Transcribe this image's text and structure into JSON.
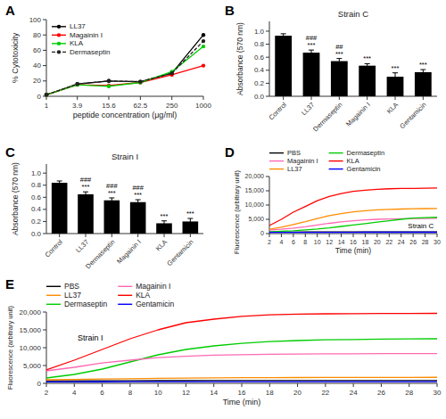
{
  "chart_data": [
    {
      "type": "line",
      "panel": "A",
      "xlabel": "peptide concentration (μg/ml)",
      "ylabel": "% Cytotoxicity",
      "log": "x",
      "x": [
        1,
        3.9,
        15.6,
        62.5,
        250,
        1000
      ],
      "xlim": [
        1,
        1000
      ],
      "xticks": [
        1,
        3.9,
        15.6,
        62.5,
        250,
        1000
      ],
      "ylim": [
        0,
        100
      ],
      "yticks": [
        0,
        20,
        40,
        60,
        80,
        100
      ],
      "legend": "upper left",
      "grid": false,
      "series": [
        {
          "name": "LL37",
          "color": "#000000",
          "marker": "circle",
          "line_style": "solid",
          "values": [
            2,
            16,
            20,
            19,
            30,
            80
          ]
        },
        {
          "name": "Magainin I",
          "color": "#ff0000",
          "marker": "circle",
          "line_style": "solid",
          "values": [
            2,
            15,
            14,
            18,
            28,
            40
          ]
        },
        {
          "name": "KLA",
          "color": "#00cc00",
          "marker": "circle",
          "line_style": "solid",
          "values": [
            2,
            15,
            13,
            18,
            32,
            65
          ]
        },
        {
          "name": "Dermaseptin",
          "color": "#222222",
          "marker": "circle",
          "line_style": "dashed",
          "values": [
            2,
            16,
            20,
            19,
            30,
            72
          ]
        }
      ]
    },
    {
      "type": "bar",
      "panel": "B",
      "title": "Strain C",
      "ylabel": "Absorbance (570 nm)",
      "categories": [
        "Control",
        "LL37",
        "Dermaseptin",
        "Magainin I",
        "KLA",
        "Gentamicin"
      ],
      "values": [
        0.93,
        0.67,
        0.54,
        0.47,
        0.3,
        0.37
      ],
      "errors": [
        0.03,
        0.04,
        0.04,
        0.03,
        0.06,
        0.04
      ],
      "color": "#000000",
      "ylim": [
        0.0,
        1.15
      ],
      "yticks": [
        {
          "value": 0,
          "label": "0.0"
        },
        0.2,
        0.4,
        0.6,
        0.8,
        {
          "value": 1,
          "label": "1.0"
        }
      ],
      "grid": false,
      "annotations": [
        {
          "category": "LL37",
          "text": "###"
        },
        {
          "category": "LL37",
          "text": "***"
        },
        {
          "category": "Dermaseptin",
          "text": "##"
        },
        {
          "category": "Dermaseptin",
          "text": "***"
        },
        {
          "category": "Magainin I",
          "text": "***"
        },
        {
          "category": "KLA",
          "text": "***"
        },
        {
          "category": "Gentamicin",
          "text": "***"
        }
      ]
    },
    {
      "type": "bar",
      "panel": "C",
      "title": "Strain I",
      "ylabel": "Absorbance (570 nm)",
      "categories": [
        "Control",
        "LL37",
        "Dermaseptin",
        "Magainin I",
        "KLA",
        "Gentamicin"
      ],
      "values": [
        0.84,
        0.65,
        0.55,
        0.52,
        0.17,
        0.2
      ],
      "errors": [
        0.03,
        0.04,
        0.04,
        0.04,
        0.04,
        0.05
      ],
      "color": "#000000",
      "ylim": [
        0.0,
        1.15
      ],
      "yticks": [
        {
          "value": 0,
          "label": "0.0"
        },
        0.2,
        0.4,
        0.6,
        0.8,
        {
          "value": 1,
          "label": "1.0"
        }
      ],
      "grid": false,
      "annotations": [
        {
          "category": "LL37",
          "text": "###"
        },
        {
          "category": "LL37",
          "text": "***"
        },
        {
          "category": "Dermaseptin",
          "text": "###"
        },
        {
          "category": "Dermaseptin",
          "text": "***"
        },
        {
          "category": "Magainin I",
          "text": "###"
        },
        {
          "category": "Magainin I",
          "text": "***"
        },
        {
          "category": "KLA",
          "text": "***"
        },
        {
          "category": "Gentamicin",
          "text": "***"
        }
      ]
    },
    {
      "type": "line",
      "panel": "D",
      "xlabel": "Time (min)",
      "ylabel": "Fluorescence (arbitrary unit)",
      "x": [
        2,
        4,
        6,
        8,
        10,
        12,
        14,
        16,
        18,
        20,
        22,
        24,
        26,
        28,
        30
      ],
      "xlim": [
        2,
        30
      ],
      "xticks": [
        2,
        4,
        6,
        8,
        10,
        12,
        14,
        16,
        18,
        20,
        22,
        24,
        26,
        28,
        30
      ],
      "ylim": [
        0,
        20000
      ],
      "yticks": [
        0,
        {
          "value": 5000,
          "label": "5,000"
        },
        {
          "value": 10000,
          "label": "10,000"
        },
        {
          "value": 15000,
          "label": "15,000"
        },
        {
          "value": 20000,
          "label": "20,000"
        }
      ],
      "legend": "upper left",
      "grid": false,
      "annotations": [
        {
          "text": "Strain C"
        }
      ],
      "series": [
        {
          "name": "PBS",
          "color": "#000000",
          "values": [
            500,
            520,
            530,
            540,
            550,
            560,
            570,
            575,
            580,
            582,
            585,
            587,
            590,
            592,
            595
          ]
        },
        {
          "name": "Magainin I",
          "color": "#ff69b4",
          "values": [
            1200,
            1500,
            1900,
            2400,
            3000,
            3600,
            4100,
            4500,
            4800,
            5000,
            5100,
            5200,
            5250,
            5300,
            5350
          ]
        },
        {
          "name": "LL37",
          "color": "#ff8c00",
          "values": [
            1500,
            2200,
            3200,
            4200,
            5300,
            6300,
            7000,
            7600,
            8000,
            8300,
            8500,
            8600,
            8700,
            8750,
            8800
          ]
        },
        {
          "name": "Dermaseptin",
          "color": "#00cc00",
          "values": [
            600,
            800,
            1000,
            1300,
            1600,
            2000,
            2500,
            3000,
            3500,
            4000,
            4500,
            5000,
            5400,
            5600,
            5700
          ]
        },
        {
          "name": "KLA",
          "color": "#ff0000",
          "values": [
            2800,
            5000,
            7500,
            9500,
            11500,
            13000,
            14000,
            14800,
            15200,
            15500,
            15700,
            15800,
            15850,
            15900,
            15950
          ]
        },
        {
          "name": "Gentamicin",
          "color": "#0000ff",
          "values": [
            400,
            420,
            430,
            440,
            445,
            450,
            455,
            460,
            462,
            464,
            466,
            468,
            470,
            472,
            474
          ]
        }
      ]
    },
    {
      "type": "line",
      "panel": "E",
      "xlabel": "Time (min)",
      "ylabel": "Fluorescence (arbitrary unit)",
      "x": [
        2,
        4,
        6,
        8,
        10,
        12,
        14,
        16,
        18,
        20,
        22,
        24,
        26,
        28,
        30
      ],
      "xlim": [
        2,
        30
      ],
      "xticks": [
        2,
        4,
        6,
        8,
        10,
        12,
        14,
        16,
        18,
        20,
        22,
        24,
        26,
        28,
        30
      ],
      "ylim": [
        0,
        20000
      ],
      "yticks": [
        0,
        {
          "value": 5000,
          "label": "5,000"
        },
        {
          "value": 10000,
          "label": "10,000"
        },
        {
          "value": 15000,
          "label": "15,000"
        },
        {
          "value": 20000,
          "label": "20,000"
        }
      ],
      "legend": "upper left",
      "grid": false,
      "annotations": [
        {
          "text": "Strain I"
        }
      ],
      "series": [
        {
          "name": "PBS",
          "color": "#000000",
          "values": [
            700,
            720,
            730,
            740,
            748,
            755,
            762,
            768,
            772,
            776,
            779,
            782,
            784,
            786,
            788
          ]
        },
        {
          "name": "LL37",
          "color": "#ff8c00",
          "values": [
            1000,
            1100,
            1200,
            1300,
            1400,
            1480,
            1540,
            1580,
            1610,
            1630,
            1650,
            1660,
            1670,
            1678,
            1685
          ]
        },
        {
          "name": "Dermaseptin",
          "color": "#00cc00",
          "values": [
            1500,
            2500,
            4000,
            6000,
            8000,
            9500,
            10500,
            11200,
            11700,
            12000,
            12200,
            12300,
            12400,
            12450,
            12500
          ]
        },
        {
          "name": "Magainin I",
          "color": "#ff69b4",
          "values": [
            3500,
            4500,
            5700,
            6500,
            7200,
            7600,
            7900,
            8050,
            8150,
            8220,
            8270,
            8300,
            8320,
            8340,
            8350
          ]
        },
        {
          "name": "KLA",
          "color": "#ff0000",
          "values": [
            3800,
            6500,
            9500,
            12500,
            15000,
            17000,
            18000,
            18800,
            19200,
            19400,
            19500,
            19550,
            19580,
            19600,
            19620
          ]
        },
        {
          "name": "Gentamicin",
          "color": "#0000ff",
          "values": [
            400,
            420,
            440,
            450,
            458,
            464,
            470,
            474,
            477,
            479,
            481,
            483,
            484,
            485,
            486
          ]
        }
      ]
    }
  ]
}
